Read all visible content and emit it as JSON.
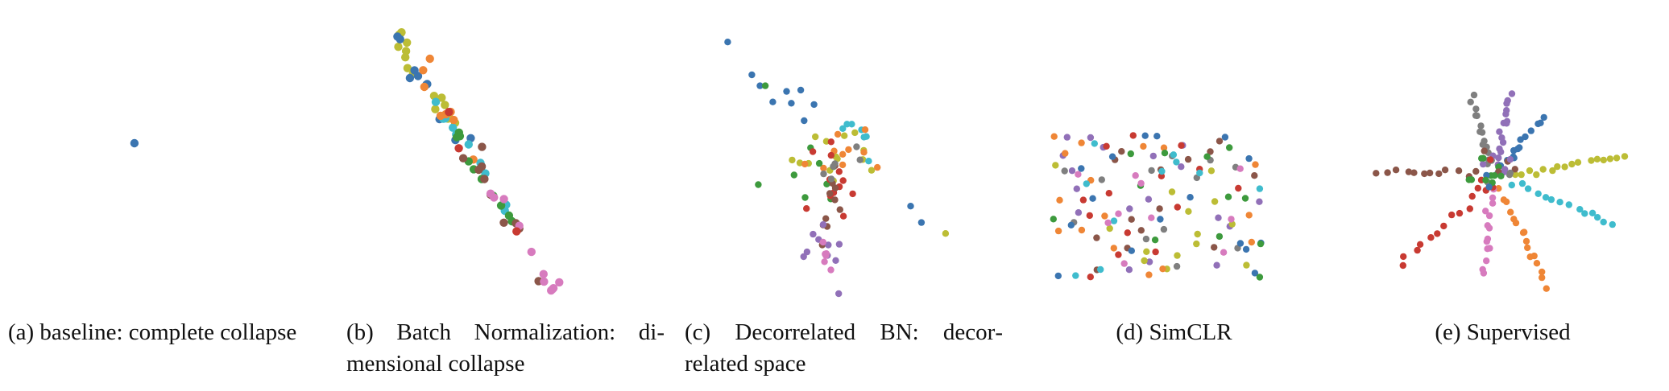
{
  "colors": {
    "blue": "#3b75b0",
    "orange": "#ef8636",
    "green": "#3d9a3d",
    "red": "#c83a32",
    "purple": "#9170b8",
    "brown": "#8b5649",
    "pink": "#d77bbe",
    "gray": "#7f7f7f",
    "olive": "#bcbd35",
    "cyan": "#3fbccd"
  },
  "captions": {
    "a": "(a) baseline: complete col­lapse",
    "b": "(b) Batch Normalization: di­mensional collapse",
    "c": "(c) Decorrelated BN: decor­related space",
    "d": "(d) SimCLR",
    "e": "(e) Supervised"
  },
  "chart_data": [
    {
      "type": "scatter",
      "panel": "a",
      "title": "(a) baseline: complete collapse",
      "xlim": [
        0,
        1
      ],
      "ylim": [
        0,
        1
      ],
      "points": [
        {
          "x": 0.38,
          "y": 0.55,
          "c": "blue"
        }
      ]
    },
    {
      "type": "scatter",
      "panel": "b",
      "title": "(b) Batch Normalization: dimensional collapse",
      "xlim": [
        0,
        1
      ],
      "ylim": [
        0,
        1
      ],
      "distribution": "line",
      "from": [
        0.1,
        0.94
      ],
      "to": [
        0.68,
        0.02
      ],
      "jitter": 0.012,
      "points_per_color": {
        "olive": 18,
        "blue": 8,
        "cyan": 12,
        "orange": 8,
        "green": 10,
        "brown": 10,
        "pink": 10,
        "red": 3
      },
      "endpoints": [
        {
          "x": 0.1,
          "y": 0.94,
          "c": "blue"
        },
        {
          "x": 0.11,
          "y": 0.93,
          "c": "blue"
        },
        {
          "x": 0.68,
          "y": 0.02,
          "c": "pink"
        }
      ]
    },
    {
      "type": "scatter",
      "panel": "c",
      "title": "(c) Decorrelated BN: decorrelated space",
      "xlim": [
        0,
        1
      ],
      "ylim": [
        0,
        1
      ],
      "distribution": "clusters",
      "seed": 21,
      "clusters": [
        {
          "c": "blue",
          "cx": 0.32,
          "cy": 0.7,
          "sx": 0.05,
          "sy": 0.04,
          "n": 6
        },
        {
          "c": "olive",
          "cx": 0.45,
          "cy": 0.5,
          "sx": 0.12,
          "sy": 0.06,
          "n": 14
        },
        {
          "c": "cyan",
          "cx": 0.58,
          "cy": 0.55,
          "sx": 0.05,
          "sy": 0.04,
          "n": 7
        },
        {
          "c": "orange",
          "cx": 0.56,
          "cy": 0.52,
          "sx": 0.08,
          "sy": 0.05,
          "n": 10
        },
        {
          "c": "green",
          "cx": 0.4,
          "cy": 0.42,
          "sx": 0.07,
          "sy": 0.06,
          "n": 8
        },
        {
          "c": "red",
          "cx": 0.47,
          "cy": 0.38,
          "sx": 0.04,
          "sy": 0.08,
          "n": 12
        },
        {
          "c": "brown",
          "cx": 0.45,
          "cy": 0.3,
          "sx": 0.03,
          "sy": 0.1,
          "n": 10
        },
        {
          "c": "purple",
          "cx": 0.44,
          "cy": 0.2,
          "sx": 0.03,
          "sy": 0.1,
          "n": 10
        },
        {
          "c": "pink",
          "cx": 0.43,
          "cy": 0.08,
          "sx": 0.02,
          "sy": 0.06,
          "n": 6
        },
        {
          "c": "gray",
          "cx": 0.46,
          "cy": 0.45,
          "sx": 0.07,
          "sy": 0.05,
          "n": 6
        }
      ],
      "extra": [
        {
          "x": 0.07,
          "y": 0.92,
          "c": "blue"
        },
        {
          "x": 0.16,
          "y": 0.8,
          "c": "blue"
        },
        {
          "x": 0.19,
          "y": 0.76,
          "c": "blue"
        },
        {
          "x": 0.21,
          "y": 0.76,
          "c": "green"
        },
        {
          "x": 0.88,
          "y": 0.22,
          "c": "olive"
        },
        {
          "x": 0.75,
          "y": 0.32,
          "c": "blue"
        },
        {
          "x": 0.79,
          "y": 0.26,
          "c": "blue"
        }
      ]
    },
    {
      "type": "scatter",
      "panel": "d",
      "title": "(d) SimCLR",
      "xlim": [
        0,
        1
      ],
      "ylim": [
        0,
        1
      ],
      "distribution": "uniform-blob",
      "seed": 7,
      "region": {
        "x0": 0.05,
        "x1": 0.84,
        "y0": 0.06,
        "y1": 0.58
      },
      "points_per_color": {
        "purple": 18,
        "red": 14,
        "brown": 14,
        "gray": 12,
        "blue": 16,
        "olive": 14,
        "orange": 16,
        "cyan": 10,
        "green": 12,
        "pink": 10
      }
    },
    {
      "type": "scatter",
      "panel": "e",
      "title": "(e) Supervised",
      "xlim": [
        0,
        1
      ],
      "ylim": [
        0,
        1
      ],
      "distribution": "rays",
      "seed": 3,
      "center": [
        0.47,
        0.43
      ],
      "rays": [
        {
          "c": "gray",
          "dx": 0.39,
          "dy": 0.72,
          "n": 14
        },
        {
          "c": "purple",
          "dx": 0.53,
          "dy": 0.72,
          "n": 16
        },
        {
          "c": "blue",
          "dx": 0.65,
          "dy": 0.64,
          "n": 12
        },
        {
          "c": "olive",
          "dx": 0.96,
          "dy": 0.5,
          "n": 16
        },
        {
          "c": "cyan",
          "dx": 0.92,
          "dy": 0.25,
          "n": 14
        },
        {
          "c": "orange",
          "dx": 0.66,
          "dy": 0.03,
          "n": 16
        },
        {
          "c": "pink",
          "dx": 0.44,
          "dy": 0.07,
          "n": 14
        },
        {
          "c": "red",
          "dx": 0.13,
          "dy": 0.1,
          "n": 12
        },
        {
          "c": "brown",
          "dx": 0.04,
          "dy": 0.45,
          "n": 12
        }
      ],
      "core": {
        "n": 30,
        "spread": 0.05,
        "colors": [
          "green",
          "green",
          "brown",
          "red",
          "gray",
          "blue",
          "purple"
        ]
      }
    }
  ]
}
